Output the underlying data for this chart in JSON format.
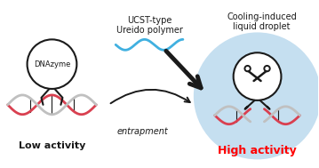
{
  "bg_color": "#ffffff",
  "droplet_color": "#c5dff0",
  "dna_strand1_color": "#d94050",
  "dna_strand2_color": "#c0c0c0",
  "black_color": "#1a1a1a",
  "blue_wave_color": "#40b0e0",
  "high_activity_color": "#ff0000",
  "title_left": "Low activity",
  "title_right": "High activity",
  "label_dnazyme": "DNAzyme",
  "label_entrapment": "entrapment",
  "label_ucst": "UCST-type",
  "label_ureido": "Ureido polymer",
  "label_cooling": "Cooling-induced",
  "label_droplet": "liquid droplet"
}
